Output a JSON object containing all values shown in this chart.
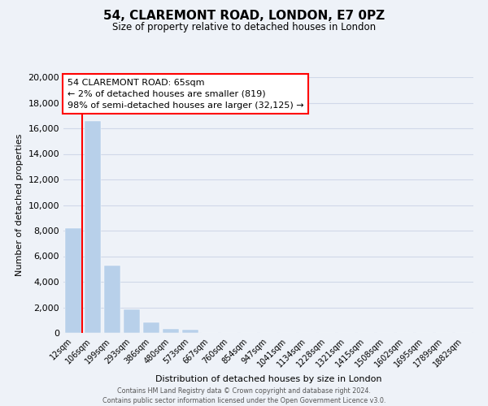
{
  "title": "54, CLAREMONT ROAD, LONDON, E7 0PZ",
  "subtitle": "Size of property relative to detached houses in London",
  "xlabel": "Distribution of detached houses by size in London",
  "ylabel": "Number of detached properties",
  "bar_color": "#b8d0ea",
  "bar_edge_color": "#b8d0ea",
  "categories": [
    "12sqm",
    "106sqm",
    "199sqm",
    "293sqm",
    "386sqm",
    "480sqm",
    "573sqm",
    "667sqm",
    "760sqm",
    "854sqm",
    "947sqm",
    "1041sqm",
    "1134sqm",
    "1228sqm",
    "1321sqm",
    "1415sqm",
    "1508sqm",
    "1602sqm",
    "1695sqm",
    "1789sqm",
    "1882sqm"
  ],
  "values": [
    8200,
    16550,
    5300,
    1850,
    800,
    300,
    280,
    0,
    0,
    0,
    0,
    0,
    0,
    0,
    0,
    0,
    0,
    0,
    0,
    0,
    0
  ],
  "ylim": [
    0,
    20000
  ],
  "yticks": [
    0,
    2000,
    4000,
    6000,
    8000,
    10000,
    12000,
    14000,
    16000,
    18000,
    20000
  ],
  "annotation_lines": [
    "54 CLAREMONT ROAD: 65sqm",
    "← 2% of detached houses are smaller (819)",
    "98% of semi-detached houses are larger (32,125) →"
  ],
  "property_line_x": 0.47,
  "background_color": "#eef2f8",
  "grid_color": "#d0d8e8",
  "footer_line1": "Contains HM Land Registry data © Crown copyright and database right 2024.",
  "footer_line2": "Contains public sector information licensed under the Open Government Licence v3.0."
}
